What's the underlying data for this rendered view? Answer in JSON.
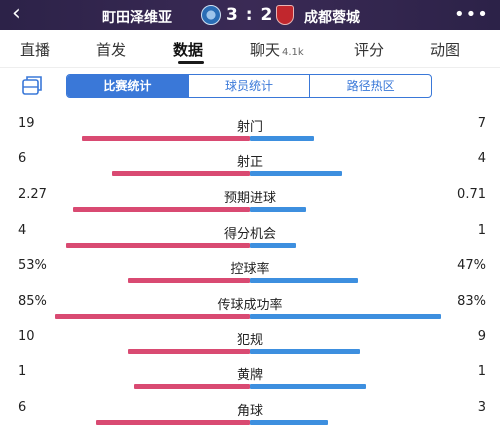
{
  "header": {
    "back_icon": "back-chevron-icon",
    "home_team": "町田泽维亚",
    "score": "3 : 2",
    "away_team": "成都蓉城",
    "more_icon": "more-dots-icon",
    "more_glyph": "•••"
  },
  "tabs": [
    {
      "label": "直播"
    },
    {
      "label": "首发"
    },
    {
      "label": "数据",
      "active": true
    },
    {
      "label": "聊天",
      "sub": "4.1k"
    },
    {
      "label": "评分"
    },
    {
      "label": "动图"
    }
  ],
  "segments": [
    {
      "label": "比赛统计",
      "active": true
    },
    {
      "label": "球员统计"
    },
    {
      "label": "路径热区"
    }
  ],
  "colors": {
    "home_bar": "#d94a72",
    "away_bar": "#3d8fdf",
    "header_bg": "#2c2248",
    "segment_accent": "#3a78d8"
  },
  "stats": [
    {
      "label": "射门",
      "home": "19",
      "away": "7"
    },
    {
      "label": "射正",
      "home": "6",
      "away": "4"
    },
    {
      "label": "预期进球",
      "home": "2.27",
      "away": "0.71"
    },
    {
      "label": "得分机会",
      "home": "4",
      "away": "1"
    },
    {
      "label": "控球率",
      "home": "53%",
      "away": "47%"
    },
    {
      "label": "传球成功率",
      "home": "85%",
      "away": "83%"
    },
    {
      "label": "犯规",
      "home": "10",
      "away": "9"
    },
    {
      "label": "黄牌",
      "home": "1",
      "away": "1"
    },
    {
      "label": "角球",
      "home": "6",
      "away": "3"
    }
  ]
}
